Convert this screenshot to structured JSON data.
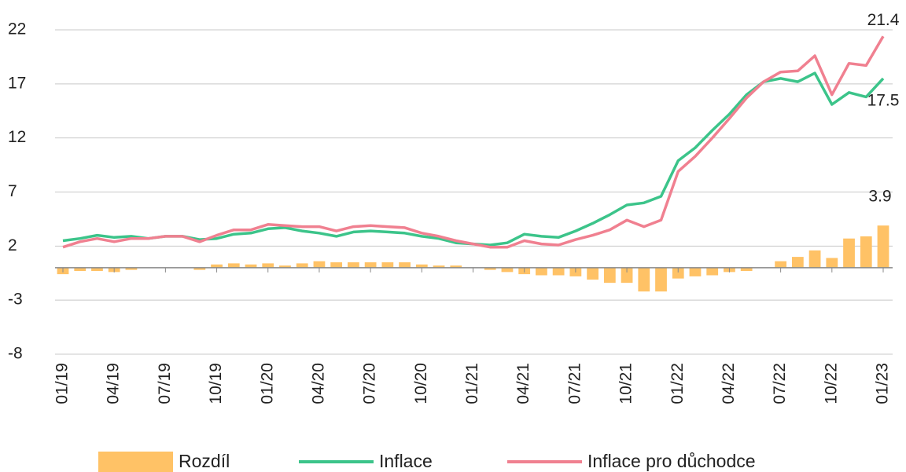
{
  "chart_data": {
    "type": "combo",
    "categories": [
      "01/19",
      null,
      null,
      "04/19",
      null,
      null,
      "07/19",
      null,
      null,
      "10/19",
      null,
      null,
      "01/20",
      null,
      null,
      "04/20",
      null,
      null,
      "07/20",
      null,
      null,
      "10/20",
      null,
      null,
      "01/21",
      null,
      null,
      "04/21",
      null,
      null,
      "07/21",
      null,
      null,
      "10/21",
      null,
      null,
      "01/22",
      null,
      null,
      "04/22",
      null,
      null,
      "07/22",
      null,
      null,
      "10/22",
      null,
      null,
      "01/23"
    ],
    "series": [
      {
        "name": "Rozdíl",
        "type": "bar",
        "color": "#ffc266",
        "values": [
          -0.6,
          -0.3,
          -0.3,
          -0.4,
          -0.2,
          0,
          0,
          0,
          -0.2,
          0.3,
          0.4,
          0.3,
          0.4,
          0.2,
          0.4,
          0.6,
          0.5,
          0.5,
          0.5,
          0.5,
          0.5,
          0.3,
          0.2,
          0.2,
          0,
          -0.2,
          -0.4,
          -0.6,
          -0.7,
          -0.7,
          -0.8,
          -1.1,
          -1.4,
          -1.4,
          -2.2,
          -2.2,
          -1.0,
          -0.8,
          -0.7,
          -0.4,
          -0.3,
          0,
          0.6,
          1.0,
          1.6,
          0.9,
          2.7,
          2.9,
          3.9
        ]
      },
      {
        "name": "Inflace",
        "type": "line",
        "color": "#3cc48a",
        "values": [
          2.5,
          2.7,
          3.0,
          2.8,
          2.9,
          2.7,
          2.9,
          2.9,
          2.6,
          2.7,
          3.1,
          3.2,
          3.6,
          3.7,
          3.4,
          3.2,
          2.9,
          3.3,
          3.4,
          3.3,
          3.2,
          2.9,
          2.7,
          2.3,
          2.2,
          2.1,
          2.3,
          3.1,
          2.9,
          2.8,
          3.4,
          4.1,
          4.9,
          5.8,
          6.0,
          6.6,
          9.9,
          11.1,
          12.7,
          14.2,
          16.0,
          17.2,
          17.5,
          17.2,
          18.0,
          15.1,
          16.2,
          15.8,
          17.5
        ]
      },
      {
        "name": "Inflace pro důchodce",
        "type": "line",
        "color": "#f08090",
        "values": [
          1.9,
          2.4,
          2.7,
          2.4,
          2.7,
          2.7,
          2.9,
          2.9,
          2.4,
          3.0,
          3.5,
          3.5,
          4.0,
          3.9,
          3.8,
          3.8,
          3.4,
          3.8,
          3.9,
          3.8,
          3.7,
          3.2,
          2.9,
          2.5,
          2.2,
          1.9,
          1.9,
          2.5,
          2.2,
          2.1,
          2.6,
          3.0,
          3.5,
          4.4,
          3.8,
          4.4,
          8.9,
          10.3,
          12.0,
          13.8,
          15.7,
          17.2,
          18.1,
          18.2,
          19.6,
          16.0,
          18.9,
          18.7,
          21.4
        ]
      }
    ],
    "ylim": [
      -8,
      22
    ],
    "yticks": [
      -8,
      -3,
      2,
      7,
      12,
      17,
      22
    ],
    "grid": true,
    "legend": "bottom"
  }
}
